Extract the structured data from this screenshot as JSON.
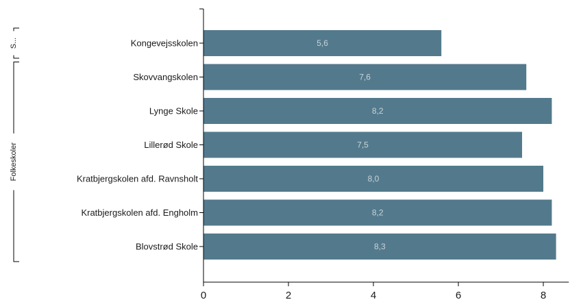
{
  "chart_data": {
    "type": "bar",
    "orientation": "horizontal",
    "categories": [
      "Kongevejsskolen",
      "Skovvangskolen",
      "Lynge Skole",
      "Lillerød Skole",
      "Kratbjergskolen afd. Ravnsholt",
      "Kratbjergskolen afd. Engholm",
      "Blovstrød Skole"
    ],
    "values": [
      5.6,
      7.6,
      8.2,
      7.5,
      8.0,
      8.2,
      8.3
    ],
    "value_labels": [
      "5,6",
      "7,6",
      "8,2",
      "7,5",
      "8,0",
      "8,2",
      "8,3"
    ],
    "groups": [
      {
        "label": "S...",
        "categories": [
          "Kongevejsskolen"
        ]
      },
      {
        "label": "Folkeskoler",
        "categories": [
          "Skovvangskolen",
          "Lynge Skole",
          "Lillerød Skole",
          "Kratbjergskolen afd. Ravnsholt",
          "Kratbjergskolen afd. Engholm",
          "Blovstrød Skole"
        ]
      }
    ],
    "xlim": [
      0,
      8.6
    ],
    "xticks": [
      0,
      2,
      4,
      6,
      8
    ],
    "title": "",
    "xlabel": "",
    "ylabel": "",
    "grid": false,
    "legend": "none",
    "bar_color": "#537a8c"
  }
}
